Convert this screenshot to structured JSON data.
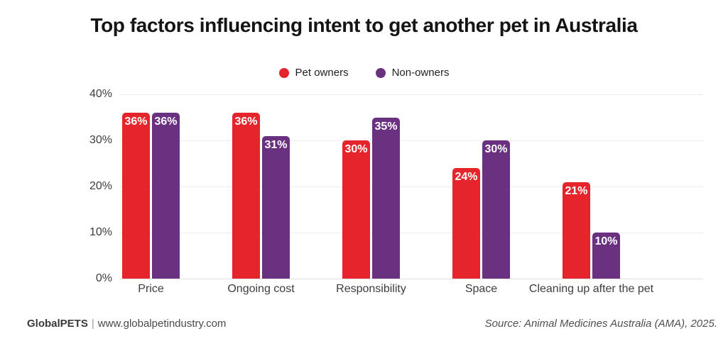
{
  "title": "Top factors influencing intent to get another pet in Australia",
  "legend": [
    {
      "label": "Pet owners",
      "color": "#E6242B"
    },
    {
      "label": "Non-owners",
      "color": "#6A3180"
    }
  ],
  "chart_data": {
    "type": "bar",
    "title": "Top factors influencing intent to get another pet in Australia",
    "categories": [
      "Price",
      "Ongoing cost",
      "Responsibility",
      "Space",
      "Cleaning up after the pet"
    ],
    "series": [
      {
        "name": "Pet owners",
        "color": "#E6242B",
        "values": [
          36,
          36,
          30,
          24,
          21
        ]
      },
      {
        "name": "Non-owners",
        "color": "#6A3180",
        "values": [
          36,
          31,
          35,
          30,
          10
        ]
      }
    ],
    "value_suffix": "%",
    "xlabel": "",
    "ylabel": "",
    "ylim": [
      0,
      40
    ],
    "yticks": [
      "0%",
      "10%",
      "20%",
      "30%",
      "40%"
    ],
    "grid": true,
    "legend_position": "top",
    "data_labels": "inside-top, white bold"
  },
  "footer": {
    "brand": "GlobalPETS",
    "separator": "|",
    "website": "www.globalpetindustry.com",
    "source": "Source: Animal Medicines Australia (AMA), 2025."
  }
}
